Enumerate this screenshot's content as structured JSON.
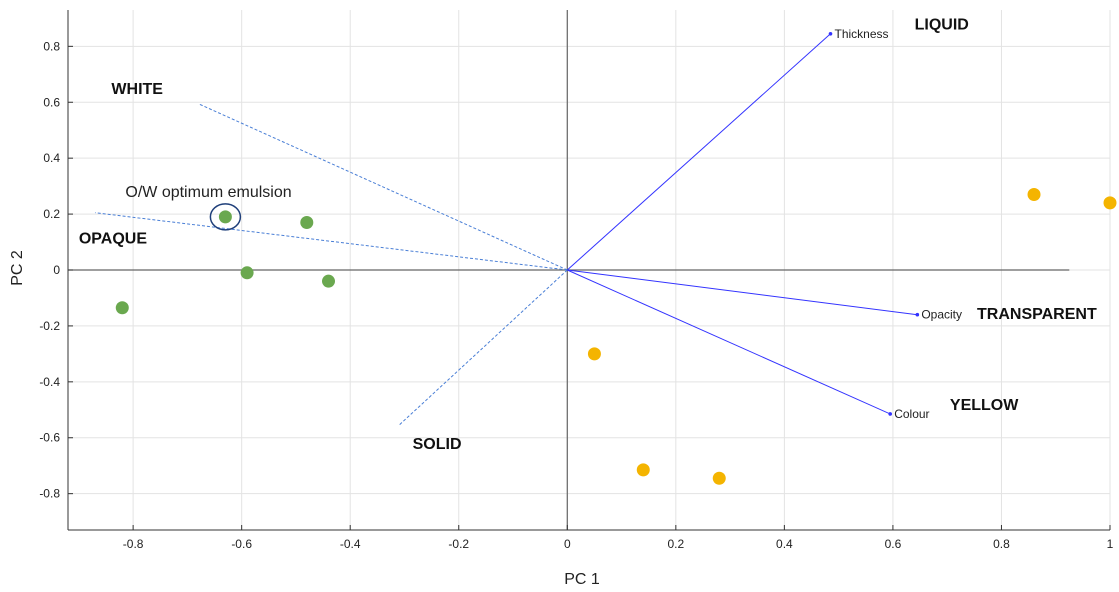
{
  "chart_data": {
    "type": "scatter",
    "title": "",
    "xlabel": "PC 1",
    "ylabel": "PC 2",
    "xlim": [
      -0.92,
      1.0
    ],
    "ylim": [
      -0.93,
      0.93
    ],
    "xticks": [
      -0.8,
      -0.6,
      -0.4,
      -0.2,
      0,
      0.2,
      0.4,
      0.6,
      0.8,
      1
    ],
    "xtick_labels": [
      "-0.8",
      "-0.6",
      "-0.4",
      "-0.2",
      "0",
      "0.2",
      "0.4",
      "0.6",
      "0.8",
      "1"
    ],
    "yticks": [
      0.8,
      0.6,
      0.4,
      0.2,
      0,
      -0.2,
      -0.4,
      -0.6,
      -0.8
    ],
    "ytick_labels": [
      "0.8",
      "0.6",
      "0.4",
      "0.2",
      "0",
      "-0.2",
      "-0.4",
      "-0.6",
      "-0.8"
    ],
    "grid": true,
    "colors": {
      "green": "#6aa84f",
      "yellow": "#f4b400",
      "vector": "#3333ff",
      "dashed": "#4a7fd6",
      "circle": "#1f3f7a"
    },
    "series": [
      {
        "color": "green",
        "points": [
          {
            "x": -0.63,
            "y": 0.19
          },
          {
            "x": -0.48,
            "y": 0.17
          },
          {
            "x": -0.59,
            "y": -0.01
          },
          {
            "x": -0.44,
            "y": -0.04
          },
          {
            "x": -0.82,
            "y": -0.135
          }
        ]
      },
      {
        "color": "yellow",
        "points": [
          {
            "x": 0.86,
            "y": 0.27
          },
          {
            "x": 1.0,
            "y": 0.24
          },
          {
            "x": 0.05,
            "y": -0.3
          },
          {
            "x": 0.14,
            "y": -0.715
          },
          {
            "x": 0.28,
            "y": -0.745
          }
        ]
      }
    ],
    "vectors": [
      {
        "label": "Thickness",
        "x": 0.485,
        "y": 0.845
      },
      {
        "label": "Opacity",
        "x": 0.645,
        "y": -0.16
      },
      {
        "label": "Colour",
        "x": 0.595,
        "y": -0.515
      }
    ],
    "dashed_lines": [
      {
        "x": -0.68,
        "y": 0.595
      },
      {
        "x": -0.87,
        "y": 0.205
      },
      {
        "x": -0.31,
        "y": -0.555
      }
    ],
    "annotations": [
      {
        "text": "LIQUID",
        "x": 0.64,
        "y": 0.86
      },
      {
        "text": "WHITE",
        "x": -0.84,
        "y": 0.63
      },
      {
        "text": "OPAQUE",
        "x": -0.9,
        "y": 0.095
      },
      {
        "text": "TRANSPARENT",
        "x": 0.755,
        "y": -0.175
      },
      {
        "text": "YELLOW",
        "x": 0.705,
        "y": -0.5
      },
      {
        "text": "SOLID",
        "x": -0.285,
        "y": -0.64
      }
    ],
    "highlight": {
      "text": "O/W optimum emulsion",
      "x": -0.63,
      "y": 0.19
    }
  }
}
